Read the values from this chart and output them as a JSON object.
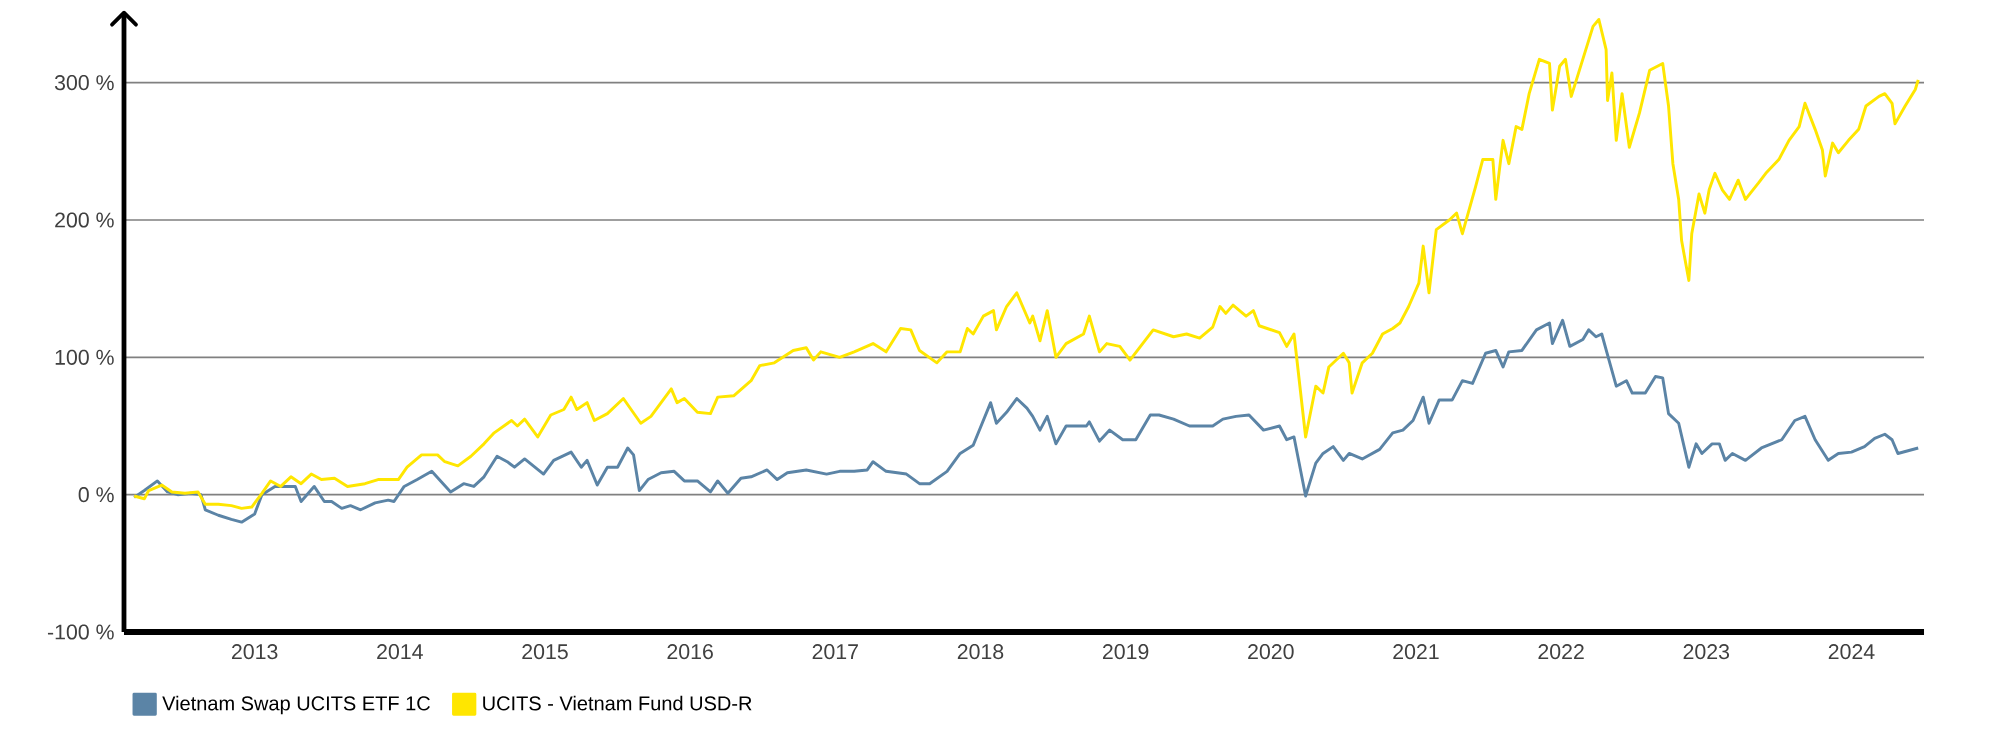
{
  "chart_data": {
    "type": "line",
    "xlim": [
      2012.1,
      2024.5
    ],
    "xticks": [
      2013,
      2014,
      2015,
      2016,
      2017,
      2018,
      2019,
      2020,
      2021,
      2022,
      2023,
      2024
    ],
    "ylim": [
      -100,
      350
    ],
    "yticks": [
      {
        "value": -100,
        "label": "-100 %"
      },
      {
        "value": 0,
        "label": "0 %"
      },
      {
        "value": 100,
        "label": "100 %"
      },
      {
        "value": 200,
        "label": "200 %"
      },
      {
        "value": 300,
        "label": "300 %"
      }
    ],
    "grid": "y",
    "legend": "bottom left",
    "series": [
      {
        "name": "Vietnam Swap UCITS ETF 1C",
        "color": "#5b84a6",
        "x": [
          2012.17,
          2012.24,
          2012.33,
          2012.4,
          2012.47,
          2012.56,
          2012.63,
          2012.66,
          2012.75,
          2012.84,
          2012.91,
          2013.0,
          2013.05,
          2013.14,
          2013.28,
          2013.32,
          2013.41,
          2013.48,
          2013.53,
          2013.6,
          2013.66,
          2013.73,
          2013.83,
          2013.92,
          2013.96,
          2014.03,
          2014.12,
          2014.22,
          2014.35,
          2014.44,
          2014.51,
          2014.58,
          2014.67,
          2014.74,
          2014.79,
          2014.86,
          2014.99,
          2015.06,
          2015.18,
          2015.25,
          2015.29,
          2015.36,
          2015.43,
          2015.5,
          2015.57,
          2015.61,
          2015.65,
          2015.71,
          2015.8,
          2015.89,
          2015.96,
          2016.05,
          2016.14,
          2016.19,
          2016.26,
          2016.35,
          2016.42,
          2016.53,
          2016.6,
          2016.67,
          2016.8,
          2016.94,
          2017.03,
          2017.13,
          2017.22,
          2017.26,
          2017.35,
          2017.49,
          2017.58,
          2017.65,
          2017.77,
          2017.86,
          2017.95,
          2018.07,
          2018.11,
          2018.18,
          2018.25,
          2018.32,
          2018.36,
          2018.41,
          2018.46,
          2018.52,
          2018.59,
          2018.73,
          2018.75,
          2018.82,
          2018.89,
          2018.98,
          2019.07,
          2019.17,
          2019.23,
          2019.33,
          2019.44,
          2019.51,
          2019.6,
          2019.67,
          2019.76,
          2019.85,
          2019.95,
          2020.06,
          2020.11,
          2020.16,
          2020.24,
          2020.31,
          2020.36,
          2020.43,
          2020.5,
          2020.54,
          2020.63,
          2020.75,
          2020.84,
          2020.91,
          2020.98,
          2021.05,
          2021.09,
          2021.16,
          2021.25,
          2021.32,
          2021.39,
          2021.48,
          2021.55,
          2021.6,
          2021.64,
          2021.73,
          2021.83,
          2021.92,
          2021.94,
          2022.01,
          2022.06,
          2022.15,
          2022.19,
          2022.24,
          2022.28,
          2022.33,
          2022.38,
          2022.45,
          2022.49,
          2022.58,
          2022.65,
          2022.7,
          2022.74,
          2022.81,
          2022.88,
          2022.93,
          2022.97,
          2023.04,
          2023.09,
          2023.13,
          2023.18,
          2023.27,
          2023.38,
          2023.52,
          2023.61,
          2023.68,
          2023.75,
          2023.84,
          2023.91,
          2024.0,
          2024.09,
          2024.16,
          2024.23,
          2024.28,
          2024.32,
          2024.46
        ],
        "values": [
          -2,
          3,
          10,
          2,
          0,
          1,
          0,
          -11,
          -15,
          -18,
          -20,
          -14,
          0,
          6,
          6,
          -5,
          6,
          -5,
          -5,
          -10,
          -8,
          -11,
          -6,
          -4,
          -5,
          6,
          11,
          17,
          2,
          8,
          6,
          13,
          28,
          24,
          20,
          26,
          15,
          25,
          31,
          20,
          25,
          7,
          20,
          20,
          34,
          29,
          3,
          11,
          16,
          17,
          10,
          10,
          2,
          10,
          1,
          12,
          13,
          18,
          11,
          16,
          18,
          15,
          17,
          17,
          18,
          24,
          17,
          15,
          8,
          8,
          17,
          30,
          36,
          67,
          52,
          60,
          70,
          63,
          57,
          47,
          57,
          37,
          50,
          50,
          53,
          39,
          47,
          40,
          40,
          58,
          58,
          55,
          50,
          50,
          50,
          55,
          57,
          58,
          47,
          50,
          40,
          42,
          -1,
          23,
          30,
          35,
          25,
          30,
          26,
          33,
          45,
          47,
          54,
          71,
          52,
          69,
          69,
          83,
          81,
          103,
          105,
          93,
          104,
          105,
          120,
          125,
          110,
          127,
          108,
          113,
          120,
          115,
          117,
          98,
          79,
          83,
          74,
          74,
          86,
          85,
          59,
          52,
          20,
          37,
          30,
          37,
          37,
          25,
          30,
          25,
          34,
          40,
          54,
          57,
          40,
          25,
          30,
          31,
          35,
          41,
          44,
          40,
          30,
          34
        ]
      },
      {
        "name": "UCITS - Vietnam Fund USD-R",
        "color": "#ffe600",
        "x": [
          2012.17,
          2012.24,
          2012.27,
          2012.36,
          2012.43,
          2012.52,
          2012.61,
          2012.66,
          2012.75,
          2012.84,
          2012.91,
          2012.98,
          2013.05,
          2013.11,
          2013.18,
          2013.25,
          2013.32,
          2013.39,
          2013.46,
          2013.55,
          2013.64,
          2013.76,
          2013.85,
          2013.99,
          2014.05,
          2014.15,
          2014.26,
          2014.31,
          2014.4,
          2014.49,
          2014.58,
          2014.65,
          2014.77,
          2014.81,
          2014.86,
          2014.95,
          2015.04,
          2015.13,
          2015.18,
          2015.22,
          2015.29,
          2015.34,
          2015.43,
          2015.54,
          2015.66,
          2015.73,
          2015.87,
          2015.91,
          2015.96,
          2016.05,
          2016.14,
          2016.19,
          2016.3,
          2016.42,
          2016.48,
          2016.58,
          2016.71,
          2016.8,
          2016.85,
          2016.9,
          2017.03,
          2017.13,
          2017.26,
          2017.35,
          2017.45,
          2017.52,
          2017.58,
          2017.7,
          2017.77,
          2017.86,
          2017.91,
          2017.95,
          2018.02,
          2018.09,
          2018.11,
          2018.18,
          2018.25,
          2018.34,
          2018.36,
          2018.41,
          2018.46,
          2018.52,
          2018.59,
          2018.71,
          2018.75,
          2018.82,
          2018.87,
          2018.96,
          2019.03,
          2019.19,
          2019.33,
          2019.42,
          2019.51,
          2019.6,
          2019.65,
          2019.69,
          2019.74,
          2019.83,
          2019.88,
          2019.92,
          2020.06,
          2020.11,
          2020.16,
          2020.24,
          2020.31,
          2020.36,
          2020.4,
          2020.5,
          2020.54,
          2020.56,
          2020.63,
          2020.7,
          2020.77,
          2020.84,
          2020.89,
          2020.95,
          2021.02,
          2021.05,
          2021.09,
          2021.14,
          2021.23,
          2021.28,
          2021.32,
          2021.41,
          2021.46,
          2021.53,
          2021.55,
          2021.6,
          2021.64,
          2021.69,
          2021.73,
          2021.78,
          2021.85,
          2021.92,
          2021.94,
          2021.99,
          2022.03,
          2022.07,
          2022.12,
          2022.17,
          2022.22,
          2022.26,
          2022.31,
          2022.32,
          2022.35,
          2022.38,
          2022.42,
          2022.47,
          2022.54,
          2022.61,
          2022.7,
          2022.74,
          2022.77,
          2022.81,
          2022.83,
          2022.88,
          2022.9,
          2022.95,
          2022.99,
          2023.02,
          2023.06,
          2023.11,
          2023.16,
          2023.22,
          2023.27,
          2023.36,
          2023.41,
          2023.5,
          2023.57,
          2023.64,
          2023.68,
          2023.75,
          2023.8,
          2023.82,
          2023.87,
          2023.91,
          2023.98,
          2024.05,
          2024.1,
          2024.19,
          2024.23,
          2024.28,
          2024.3,
          2024.37,
          2024.44,
          2024.46
        ],
        "values": [
          -1,
          -3,
          3,
          7,
          2,
          1,
          2,
          -7,
          -7,
          -8,
          -10,
          -9,
          1,
          10,
          6,
          13,
          8,
          15,
          11,
          12,
          6,
          8,
          11,
          11,
          20,
          29,
          29,
          24,
          21,
          28,
          37,
          45,
          54,
          50,
          55,
          42,
          58,
          62,
          71,
          62,
          67,
          54,
          59,
          70,
          52,
          57,
          77,
          67,
          70,
          60,
          59,
          71,
          72,
          83,
          94,
          96,
          105,
          107,
          98,
          104,
          100,
          104,
          110,
          104,
          121,
          120,
          105,
          96,
          104,
          104,
          121,
          117,
          130,
          134,
          120,
          137,
          147,
          125,
          130,
          112,
          134,
          100,
          110,
          117,
          130,
          104,
          110,
          108,
          98,
          120,
          115,
          117,
          114,
          122,
          137,
          132,
          138,
          130,
          134,
          123,
          118,
          108,
          117,
          42,
          79,
          74,
          93,
          103,
          96,
          74,
          96,
          103,
          117,
          121,
          125,
          137,
          154,
          181,
          147,
          193,
          200,
          205,
          190,
          224,
          244,
          244,
          215,
          258,
          241,
          268,
          266,
          292,
          317,
          314,
          280,
          312,
          317,
          290,
          307,
          324,
          341,
          346,
          324,
          287,
          307,
          258,
          292,
          253,
          278,
          309,
          314,
          283,
          241,
          215,
          185,
          156,
          190,
          219,
          205,
          222,
          234,
          222,
          215,
          229,
          215,
          227,
          234,
          244,
          258,
          268,
          285,
          266,
          251,
          232,
          256,
          249,
          258,
          266,
          283,
          290,
          292,
          285,
          270,
          283,
          295,
          302
        ]
      }
    ]
  }
}
